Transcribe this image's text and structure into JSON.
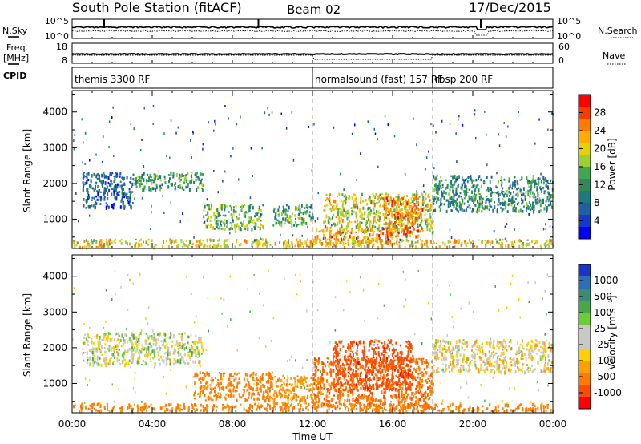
{
  "header": {
    "station": "South Pole Station (fitACF)",
    "beam": "Beam 02",
    "date": "17/Dec/2015"
  },
  "summary_panels": {
    "nsky_label": "N.Sky",
    "nsearch_label": "N.Search",
    "freq_label_top": "Freq.",
    "freq_label_bottom": "[MHz]",
    "nave_label": "Nave",
    "cpid_label": "CPID",
    "nsky_ticks": [
      "10^5",
      "10^0"
    ],
    "nsearch_ticks": [
      "10^5",
      "10^0"
    ],
    "freq_ticks": [
      "18",
      "8"
    ],
    "nave_ticks": [
      "60",
      "0"
    ]
  },
  "cpid_segments": [
    {
      "label": "themis 3300 RF",
      "start_hour": 0.0
    },
    {
      "label": "normalsound (fast) 157 RF",
      "start_hour": 12.0
    },
    {
      "label": "rbsp 200 RF",
      "start_hour": 18.0
    }
  ],
  "power_colorbar": {
    "title": "Power [dB]",
    "ticks": [
      "28",
      "24",
      "20",
      "16",
      "12",
      "8",
      "4"
    ],
    "colors": [
      "#ff0000",
      "#ff3a00",
      "#ff7a00",
      "#ffae00",
      "#e6d000",
      "#9ccf36",
      "#3fa850",
      "#2e8b57",
      "#1f7a80",
      "#1f5fa8",
      "#1538d0",
      "#0000ff"
    ]
  },
  "velocity_colorbar": {
    "title": "Velocity [m s⁻¹]",
    "ticks": [
      "1000",
      "500",
      "100",
      "25",
      "-25",
      "-100",
      "-500",
      "-1000"
    ],
    "colors": [
      "#1a33c8",
      "#2a6fb8",
      "#3c8c72",
      "#4aa84a",
      "#6ccc3a",
      "#c8c8c8",
      "#c8c8c8",
      "#ffd000",
      "#ffa000",
      "#ff7a00",
      "#ff4a00",
      "#ff0000"
    ]
  },
  "x_axis": {
    "tick_labels": [
      "00:00",
      "04:00",
      "08:00",
      "12:00",
      "16:00",
      "20:00",
      "00:00"
    ],
    "title": "Time UT"
  },
  "y_axis_title": "Slant Range [km]",
  "y_ticks": [
    "4000",
    "3000",
    "2000",
    "1000"
  ],
  "chart_data": [
    {
      "type": "heatmap",
      "title": "",
      "xlabel": "",
      "ylabel": "Slant Range [km]",
      "xlim": [
        0,
        24
      ],
      "ylim": [
        180,
        4600
      ],
      "colorbar": "Power [dB]",
      "clim": [
        0,
        30
      ],
      "clusters": [
        {
          "t": [
            0.5,
            3.0
          ],
          "r": [
            1300,
            2300
          ],
          "val": 6
        },
        {
          "t": [
            3.0,
            6.5
          ],
          "r": [
            1800,
            2300
          ],
          "val": 12
        },
        {
          "t": [
            6.5,
            9.5
          ],
          "r": [
            700,
            1400
          ],
          "val": 14
        },
        {
          "t": [
            10.0,
            12.0
          ],
          "r": [
            800,
            1400
          ],
          "val": 12
        },
        {
          "t": [
            12.0,
            16.0
          ],
          "r": [
            300,
            700
          ],
          "val": 24
        },
        {
          "t": [
            12.5,
            18.0
          ],
          "r": [
            600,
            1700
          ],
          "val": 18
        },
        {
          "t": [
            15.5,
            17.5
          ],
          "r": [
            500,
            1600
          ],
          "val": 24
        },
        {
          "t": [
            18.0,
            24.0
          ],
          "r": [
            1200,
            2200
          ],
          "val": 10
        },
        {
          "t": [
            0.0,
            24.0
          ],
          "r": [
            200,
            420
          ],
          "val": 20
        }
      ]
    },
    {
      "type": "heatmap",
      "title": "",
      "xlabel": "Time UT",
      "ylabel": "Slant Range [km]",
      "xlim": [
        0,
        24
      ],
      "ylim": [
        180,
        4600
      ],
      "colorbar": "Velocity [m s⁻¹]",
      "clim": [
        -1000,
        1000
      ],
      "clusters": [
        {
          "t": [
            0.5,
            6.5
          ],
          "r": [
            1500,
            2400
          ],
          "val": 0
        },
        {
          "t": [
            6.0,
            10.0
          ],
          "r": [
            500,
            1300
          ],
          "val": -300
        },
        {
          "t": [
            10.0,
            12.5
          ],
          "r": [
            400,
            1200
          ],
          "val": -200
        },
        {
          "t": [
            12.0,
            18.0
          ],
          "r": [
            300,
            1700
          ],
          "val": -400
        },
        {
          "t": [
            13.0,
            17.0
          ],
          "r": [
            800,
            2200
          ],
          "val": -700
        },
        {
          "t": [
            18.0,
            24.0
          ],
          "r": [
            1300,
            2200
          ],
          "val": -60
        },
        {
          "t": [
            0.0,
            24.0
          ],
          "r": [
            200,
            420
          ],
          "val": -300
        }
      ]
    }
  ]
}
